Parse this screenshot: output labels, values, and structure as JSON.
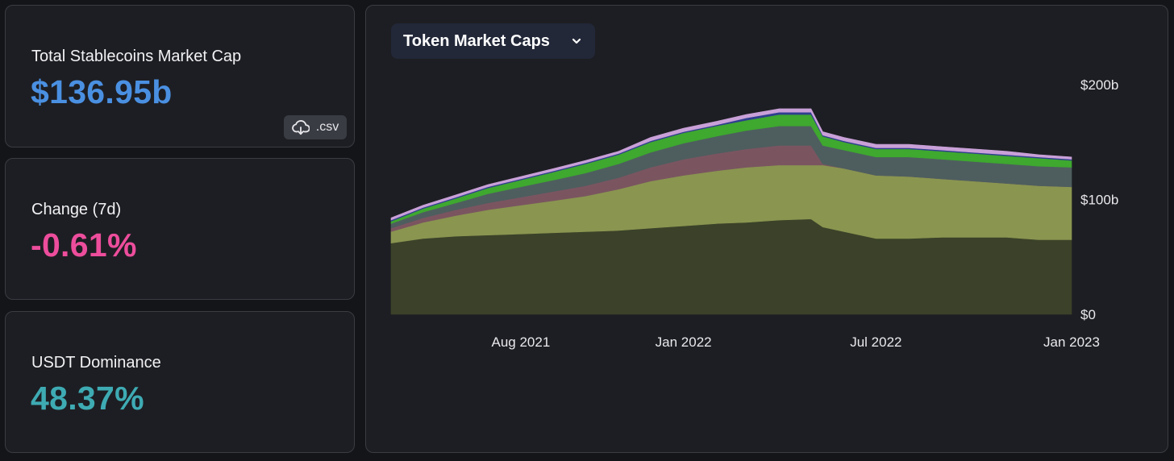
{
  "stats": {
    "market_cap": {
      "label": "Total Stablecoins Market Cap",
      "value": "$136.95b"
    },
    "change": {
      "label": "Change (7d)",
      "value": "-0.61%"
    },
    "dominance": {
      "label": "USDT Dominance",
      "value": "48.37%"
    },
    "csv_label": ".csv",
    "csv_icon": "cloud-download-icon"
  },
  "chart": {
    "dropdown_label": "Token Market Caps",
    "dropdown_icon": "chevron-down-icon"
  },
  "chart_data": {
    "type": "area",
    "stacked": true,
    "title": "",
    "xlabel": "",
    "ylabel": "",
    "ylim": [
      0,
      200
    ],
    "y_ticks": [
      {
        "value": 0,
        "label": "$0"
      },
      {
        "value": 100,
        "label": "$100b"
      },
      {
        "value": 200,
        "label": "$200b"
      }
    ],
    "x_ticks": [
      {
        "value": "2021-08-01",
        "label": "Aug 2021"
      },
      {
        "value": "2022-01-01",
        "label": "Jan 2022"
      },
      {
        "value": "2022-07-01",
        "label": "Jul 2022"
      },
      {
        "value": "2023-01-01",
        "label": "Jan 2023"
      }
    ],
    "x_range": [
      "2021-04-01",
      "2023-01-01"
    ],
    "grid": false,
    "legend": "none",
    "x": [
      "2021-04-01",
      "2021-05-01",
      "2021-06-01",
      "2021-07-01",
      "2021-08-01",
      "2021-09-01",
      "2021-10-01",
      "2021-11-01",
      "2021-12-01",
      "2022-01-01",
      "2022-02-01",
      "2022-03-01",
      "2022-04-01",
      "2022-05-01",
      "2022-05-12",
      "2022-06-01",
      "2022-07-01",
      "2022-08-01",
      "2022-09-01",
      "2022-10-01",
      "2022-11-01",
      "2022-12-01",
      "2023-01-01"
    ],
    "series": [
      {
        "color": "#3b4229",
        "values": [
          62,
          66,
          68,
          69,
          70,
          71,
          72,
          73,
          75,
          77,
          79,
          80,
          82,
          83,
          76,
          72,
          66,
          66,
          67,
          67,
          67,
          65,
          65
        ]
      },
      {
        "color": "#8a9550",
        "values": [
          10,
          14,
          18,
          22,
          25,
          28,
          31,
          36,
          41,
          44,
          46,
          48,
          48,
          47,
          54,
          55,
          55,
          54,
          51,
          49,
          47,
          47,
          46
        ]
      },
      {
        "color": "#7a5560",
        "values": [
          3,
          4,
          5,
          6,
          7,
          8,
          9,
          10,
          12,
          14,
          15,
          16,
          17,
          17,
          1,
          0,
          0,
          0,
          0,
          0,
          0,
          0,
          0
        ]
      },
      {
        "color": "#4e5e5f",
        "values": [
          4,
          5,
          6,
          8,
          9,
          10,
          11,
          12,
          13,
          14,
          15,
          16,
          17,
          17,
          16,
          16,
          16,
          17,
          17,
          17,
          17,
          17,
          17
        ]
      },
      {
        "color": "#3ea82f",
        "values": [
          2,
          3,
          4,
          5,
          6,
          7,
          8,
          8,
          9,
          9,
          9,
          9,
          10,
          10,
          8,
          7,
          7,
          7,
          7,
          7,
          7,
          7,
          6
        ]
      },
      {
        "color": "#2f3f8f",
        "values": [
          1,
          1,
          1,
          1,
          1,
          1,
          1,
          1,
          1,
          1,
          1,
          2,
          2,
          2,
          1,
          1,
          1,
          1,
          1,
          1,
          1,
          1,
          1
        ]
      },
      {
        "color": "#c9a0d8",
        "values": [
          2,
          2,
          2,
          2,
          2,
          2,
          2,
          2,
          3,
          3,
          3,
          3,
          3,
          3,
          3,
          3,
          3,
          3,
          3,
          3,
          3,
          2,
          2
        ]
      }
    ]
  }
}
